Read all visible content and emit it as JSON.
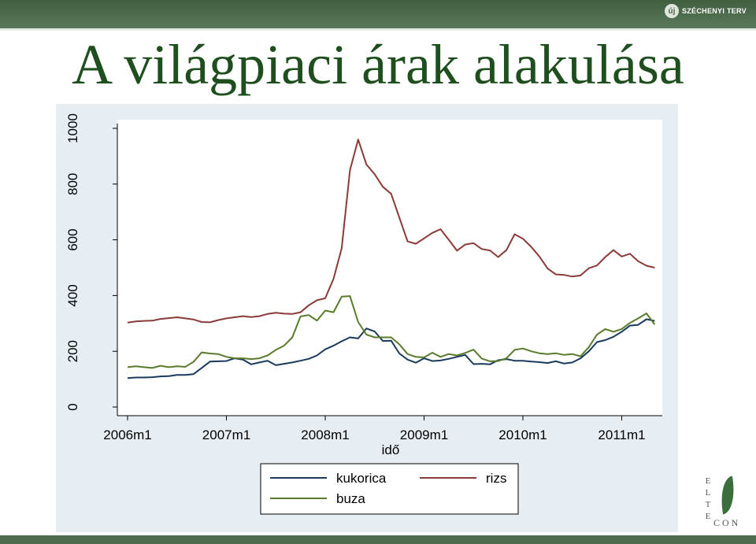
{
  "slide": {
    "title": "A világpiaci árak alakulása",
    "top_logo_text": "SZÉCHENYI TERV",
    "top_logo_mark": "új",
    "bottom_logo_letters": [
      "E",
      "L",
      "T",
      "E"
    ],
    "bottom_logo_suffix": "CON"
  },
  "colors": {
    "kukorica": "#1a3a5c",
    "rizs": "#8b3a3a",
    "buza": "#5a7a2c",
    "title": "#1f4f1f",
    "chart_background": "#e6eef3"
  },
  "chart_data": {
    "type": "line",
    "title": "",
    "xlabel": "idő",
    "ylabel": "",
    "ylim": [
      0,
      1000
    ],
    "yticks": [
      0,
      200,
      400,
      600,
      800,
      1000
    ],
    "ytick_labels": [
      "0",
      "200",
      "400",
      "600",
      "800",
      "1000"
    ],
    "xticks": [
      "2006m1",
      "2007m1",
      "2008m1",
      "2009m1",
      "2010m1",
      "2011m1"
    ],
    "x_start": "2006m1",
    "x_end": "2011m5",
    "legend_position": "bottom",
    "series": [
      {
        "name": "kukorica",
        "values": [
          104,
          106,
          106,
          107,
          110,
          111,
          115,
          115,
          118,
          140,
          163,
          164,
          165,
          175,
          170,
          153,
          160,
          166,
          150,
          155,
          160,
          166,
          173,
          185,
          207,
          220,
          236,
          250,
          246,
          282,
          271,
          237,
          238,
          192,
          170,
          159,
          175,
          165,
          167,
          173,
          180,
          187,
          154,
          155,
          153,
          168,
          172,
          166,
          166,
          163,
          161,
          158,
          164,
          156,
          160,
          175,
          200,
          233,
          240,
          252,
          270,
          292,
          295,
          315,
          309
        ],
        "x_start_index": 0
      },
      {
        "name": "rizs",
        "values": [
          303,
          307,
          309,
          310,
          316,
          319,
          322,
          318,
          314,
          305,
          304,
          312,
          318,
          322,
          326,
          323,
          326,
          334,
          338,
          335,
          334,
          340,
          365,
          383,
          390,
          460,
          570,
          850,
          960,
          870,
          835,
          790,
          765,
          680,
          594,
          586,
          605,
          625,
          638,
          600,
          561,
          583,
          588,
          567,
          562,
          538,
          563,
          620,
          604,
          575,
          540,
          497,
          476,
          474,
          468,
          472,
          498,
          508,
          538,
          563,
          540,
          550,
          523,
          507,
          500
        ],
        "x_start_index": 0
      },
      {
        "name": "buza",
        "values": [
          143,
          146,
          143,
          140,
          148,
          143,
          146,
          144,
          162,
          196,
          192,
          190,
          180,
          175,
          175,
          172,
          175,
          185,
          205,
          220,
          250,
          325,
          330,
          310,
          346,
          340,
          396,
          398,
          305,
          260,
          250,
          250,
          250,
          225,
          190,
          180,
          178,
          195,
          180,
          190,
          185,
          194,
          206,
          174,
          164,
          165,
          175,
          205,
          210,
          200,
          193,
          190,
          193,
          187,
          190,
          182,
          215,
          260,
          280,
          270,
          280,
          302,
          318,
          336,
          296
        ],
        "x_start_index": 0
      }
    ]
  }
}
